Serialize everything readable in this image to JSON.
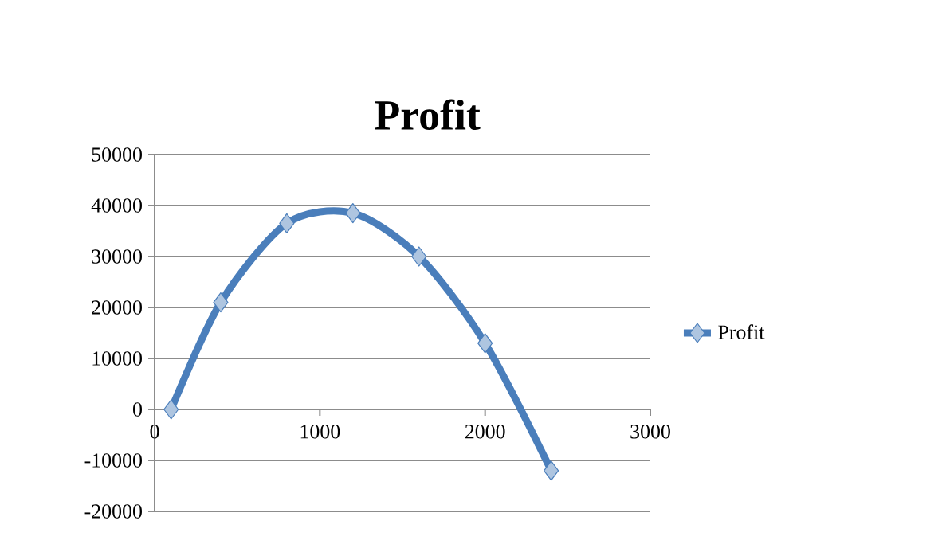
{
  "chart_data": {
    "type": "line",
    "title": "Profit",
    "x": [
      100,
      400,
      800,
      1200,
      1600,
      2000,
      2400
    ],
    "series": [
      {
        "name": "Profit",
        "color": "#4a7ebb",
        "values": [
          0,
          21000,
          36500,
          38500,
          30000,
          13000,
          -12000
        ]
      }
    ],
    "xlim": [
      0,
      3000
    ],
    "xticks": [
      0,
      1000,
      2000,
      3000
    ],
    "ylim": [
      -20000,
      50000
    ],
    "yticks": [
      -20000,
      -10000,
      0,
      10000,
      20000,
      30000,
      40000,
      50000
    ],
    "grid": "y",
    "legend": "right",
    "marker": "diamond",
    "line_style": "solid"
  }
}
